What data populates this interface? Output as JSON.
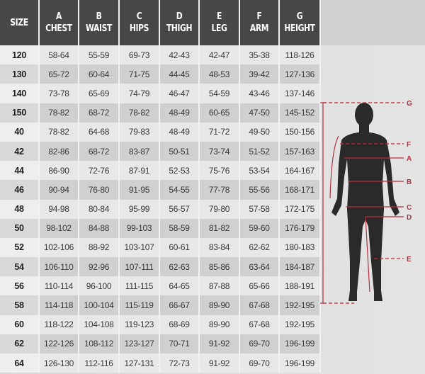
{
  "columns": [
    {
      "letter": "",
      "name": "SIZE"
    },
    {
      "letter": "A",
      "name": "CHEST"
    },
    {
      "letter": "B",
      "name": "WAIST"
    },
    {
      "letter": "C",
      "name": "HIPS"
    },
    {
      "letter": "D",
      "name": "THIGH"
    },
    {
      "letter": "E",
      "name": "LEG"
    },
    {
      "letter": "F",
      "name": "ARM"
    },
    {
      "letter": "G",
      "name": "HEIGHT"
    }
  ],
  "rows": [
    [
      "120",
      "58-64",
      "55-59",
      "69-73",
      "42-43",
      "42-47",
      "35-38",
      "118-126"
    ],
    [
      "130",
      "65-72",
      "60-64",
      "71-75",
      "44-45",
      "48-53",
      "39-42",
      "127-136"
    ],
    [
      "140",
      "73-78",
      "65-69",
      "74-79",
      "46-47",
      "54-59",
      "43-46",
      "137-146"
    ],
    [
      "150",
      "78-82",
      "68-72",
      "78-82",
      "48-49",
      "60-65",
      "47-50",
      "145-152"
    ],
    [
      "40",
      "78-82",
      "64-68",
      "79-83",
      "48-49",
      "71-72",
      "49-50",
      "150-156"
    ],
    [
      "42",
      "82-86",
      "68-72",
      "83-87",
      "50-51",
      "73-74",
      "51-52",
      "157-163"
    ],
    [
      "44",
      "86-90",
      "72-76",
      "87-91",
      "52-53",
      "75-76",
      "53-54",
      "164-167"
    ],
    [
      "46",
      "90-94",
      "76-80",
      "91-95",
      "54-55",
      "77-78",
      "55-56",
      "168-171"
    ],
    [
      "48",
      "94-98",
      "80-84",
      "95-99",
      "56-57",
      "79-80",
      "57-58",
      "172-175"
    ],
    [
      "50",
      "98-102",
      "84-88",
      "99-103",
      "58-59",
      "81-82",
      "59-60",
      "176-179"
    ],
    [
      "52",
      "102-106",
      "88-92",
      "103-107",
      "60-61",
      "83-84",
      "62-62",
      "180-183"
    ],
    [
      "54",
      "106-110",
      "92-96",
      "107-111",
      "62-63",
      "85-86",
      "63-64",
      "184-187"
    ],
    [
      "56",
      "110-114",
      "96-100",
      "111-115",
      "64-65",
      "87-88",
      "65-66",
      "188-191"
    ],
    [
      "58",
      "114-118",
      "100-104",
      "115-119",
      "66-67",
      "89-90",
      "67-68",
      "192-195"
    ],
    [
      "60",
      "118-122",
      "104-108",
      "119-123",
      "68-69",
      "89-90",
      "67-68",
      "192-195"
    ],
    [
      "62",
      "122-126",
      "108-112",
      "123-127",
      "70-71",
      "91-92",
      "69-70",
      "196-199"
    ],
    [
      "64",
      "126-130",
      "112-116",
      "127-131",
      "72-73",
      "91-92",
      "69-70",
      "196-199"
    ]
  ],
  "figure": {
    "labels": [
      "G",
      "F",
      "A",
      "B",
      "C",
      "D",
      "E"
    ],
    "accent": "#b23040",
    "silhouette": "#2a2a2a"
  }
}
